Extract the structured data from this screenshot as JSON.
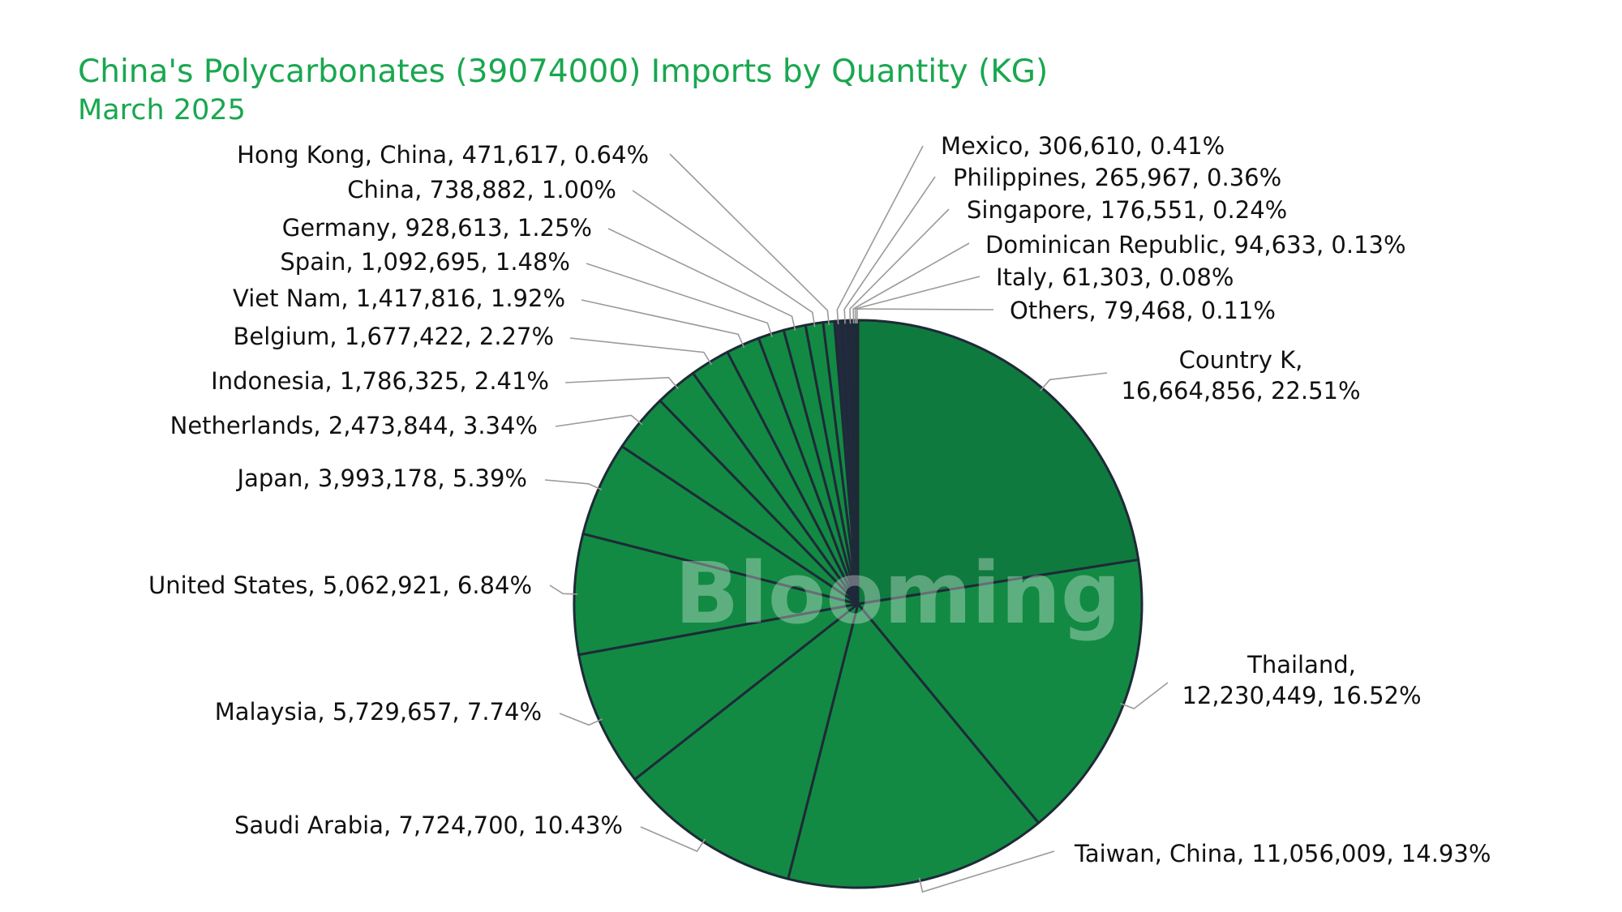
{
  "title": "China's Polycarbonates (39074000) Imports by Quantity (KG)",
  "subtitle": "March 2025",
  "watermark": "Blooming",
  "colors": {
    "slice_fill": "#128a43",
    "slice_fill_alt": "#0f7a3e",
    "slice_stroke": "#1e2a38",
    "small_slice_fill": "#232a40",
    "title": "#19a74f"
  },
  "chart_data": {
    "type": "pie",
    "title": "China's Polycarbonates (39074000) Imports by Quantity (KG)",
    "subtitle": "March 2025",
    "slices": [
      {
        "label": "Country K",
        "value": 16664856,
        "value_text": "16,664,856",
        "percent": "22.51%"
      },
      {
        "label": "Thailand",
        "value": 12230449,
        "value_text": "12,230,449",
        "percent": "16.52%"
      },
      {
        "label": "Taiwan,  China",
        "value": 11056009,
        "value_text": "11,056,009",
        "percent": "14.93%"
      },
      {
        "label": "Saudi Arabia",
        "value": 7724700,
        "value_text": "7,724,700",
        "percent": "10.43%"
      },
      {
        "label": "Malaysia",
        "value": 5729657,
        "value_text": "5,729,657",
        "percent": "7.74%"
      },
      {
        "label": "United States",
        "value": 5062921,
        "value_text": "5,062,921",
        "percent": "6.84%"
      },
      {
        "label": "Japan",
        "value": 3993178,
        "value_text": "3,993,178",
        "percent": "5.39%"
      },
      {
        "label": "Netherlands",
        "value": 2473844,
        "value_text": "2,473,844",
        "percent": "3.34%"
      },
      {
        "label": "Indonesia",
        "value": 1786325,
        "value_text": "1,786,325",
        "percent": "2.41%"
      },
      {
        "label": "Belgium",
        "value": 1677422,
        "value_text": "1,677,422",
        "percent": "2.27%"
      },
      {
        "label": "Viet Nam",
        "value": 1417816,
        "value_text": "1,417,816",
        "percent": "1.92%"
      },
      {
        "label": "Spain",
        "value": 1092695,
        "value_text": "1,092,695",
        "percent": "1.48%"
      },
      {
        "label": "Germany",
        "value": 928613,
        "value_text": "928,613",
        "percent": "1.25%"
      },
      {
        "label": "China",
        "value": 738882,
        "value_text": "738,882",
        "percent": "1.00%"
      },
      {
        "label": "Hong Kong,  China",
        "value": 471617,
        "value_text": "471,617",
        "percent": "0.64%"
      },
      {
        "label": "Mexico",
        "value": 306610,
        "value_text": "306,610",
        "percent": "0.41%"
      },
      {
        "label": "Philippines",
        "value": 265967,
        "value_text": "265,967",
        "percent": "0.36%"
      },
      {
        "label": "Singapore",
        "value": 176551,
        "value_text": "176,551",
        "percent": "0.24%"
      },
      {
        "label": "Dominican Republic",
        "value": 94633,
        "value_text": "94,633",
        "percent": "0.13%"
      },
      {
        "label": "Italy",
        "value": 61303,
        "value_text": "61,303",
        "percent": "0.08%"
      },
      {
        "label": "Others",
        "value": 79468,
        "value_text": "79,468",
        "percent": "0.11%"
      }
    ],
    "start_angle": "12 o'clock",
    "direction": "clockwise",
    "labels": "outside with leader lines",
    "legend": "none"
  }
}
